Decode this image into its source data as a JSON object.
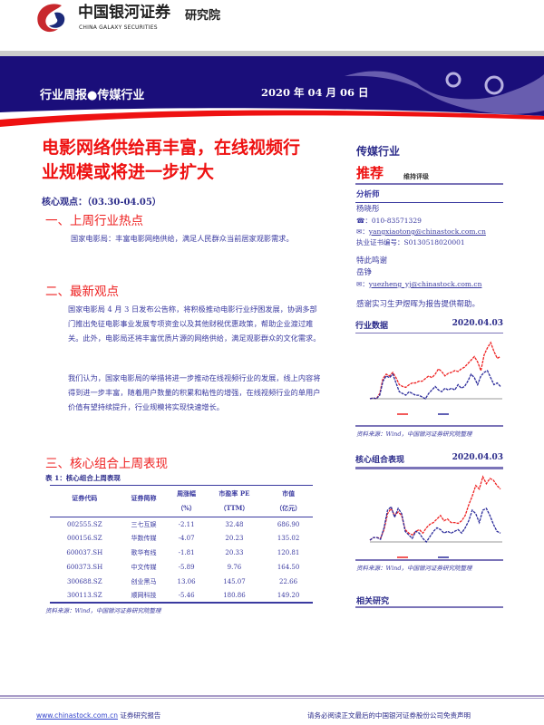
{
  "header": {
    "brand_cn": "中国银河证券",
    "brand_en": "CHINA GALAXY SECURITIES",
    "institute": "研究院"
  },
  "banner": {
    "report_type": "行业周报●传媒行业",
    "date": "2020 年 04 月 06 日"
  },
  "title": "电影网络供给再丰富，在线视频行业规模或将进一步扩大",
  "core_view": "核心观点：（03.30-04.05）",
  "rating": {
    "sector": "传媒行业",
    "rating": "推荐",
    "rating_note": "维持评级"
  },
  "analyst": {
    "heading": "分析师",
    "name": "杨晓彤",
    "phone": "☎：010-83571329",
    "email_label": "✉：",
    "email": "yangxiaotong@chinastock.com.cn",
    "license": "执业证书编号：S0130518020001",
    "thanks_heading": "特此鸣谢",
    "thanks_name": "岳铮",
    "thanks_email": "yuezheng_yj@chinastock.com.cn",
    "intern_note": "感谢实习生尹煜晖为报告提供帮助。"
  },
  "sections": [
    {
      "heading": "一、上周行业热点",
      "paras": [
        "国家电影局：丰富电影网络供给，满足人民群众当前居家观影需求。"
      ]
    },
    {
      "heading": "二、最新观点",
      "paras": [
        "国家电影局 4 月 3 日发布公告称，将积极推动电影行业纾困发展，协调多部门推出免征电影事业发展专项资金以及其他财税优惠政策，帮助企业渡过难关。此外，电影局还将丰富优质片源的网络供给，满足观影群众的文化需求。",
        "我们认为，国家电影局的举措将进一步推动在线视频行业的发展，线上内容将得到进一步丰富，随着用户数量的积累和粘性的增强，在线视频行业的单用户价值有望持续提升，行业规模将实现快速增长。"
      ]
    },
    {
      "heading": "三、核心组合上周表现"
    }
  ],
  "table": {
    "caption": "表 1：核心组合上周表现",
    "headers": [
      [
        "证券代码",
        ""
      ],
      [
        "证券简称",
        ""
      ],
      [
        "周涨幅",
        "（%）"
      ],
      [
        "市盈率 PE",
        "（TTM）"
      ],
      [
        "市值",
        "（亿元）"
      ]
    ],
    "rows": [
      [
        "002555.SZ",
        "三七互娱",
        "-2.11",
        "32.48",
        "686.90"
      ],
      [
        "000156.SZ",
        "华数传媒",
        "-4.07",
        "20.23",
        "135.02"
      ],
      [
        "600037.SH",
        "歌华有线",
        "-1.81",
        "20.33",
        "120.81"
      ],
      [
        "600373.SH",
        "中文传媒",
        "-5.89",
        "9.76",
        "164.50"
      ],
      [
        "300688.SZ",
        "创业黑马",
        "13.06",
        "145.07",
        "22.66"
      ],
      [
        "300113.SZ",
        "顺网科技",
        "-5.46",
        "180.86",
        "149.20"
      ]
    ],
    "source": "资料来源：Wind，中国银河证券研究院整理"
  },
  "figures": [
    {
      "title": "行业数据",
      "date": "2020.04.03",
      "source": "资料来源：Wind，中国银河证券研究院整理",
      "series": [
        {
          "color": "#ee2222",
          "values": [
            2,
            3,
            2,
            8,
            25,
            30,
            28,
            32,
            26,
            18,
            16,
            15,
            18,
            20,
            20,
            22,
            22,
            25,
            28,
            26,
            30,
            36,
            33,
            28,
            31,
            32,
            34,
            33,
            36,
            38,
            42,
            46,
            50,
            44,
            34,
            52,
            60,
            66,
            56,
            48,
            50
          ]
        },
        {
          "color": "#2b2b9a",
          "values": [
            2,
            3,
            2,
            6,
            22,
            28,
            26,
            30,
            20,
            10,
            8,
            6,
            10,
            8,
            6,
            6,
            4,
            2,
            8,
            12,
            16,
            12,
            10,
            14,
            12,
            14,
            12,
            18,
            14,
            16,
            22,
            30,
            26,
            18,
            28,
            32,
            34,
            26,
            18,
            20,
            16
          ]
        }
      ]
    },
    {
      "title": "核心组合表现",
      "date": "2020.04.03",
      "source": "资料来源：Wind，中国银河证券研究院整理",
      "series": [
        {
          "color": "#ee2222",
          "values": [
            0,
            3,
            3,
            2,
            12,
            30,
            36,
            28,
            32,
            28,
            12,
            8,
            6,
            10,
            12,
            8,
            14,
            18,
            20,
            24,
            28,
            22,
            24,
            20,
            20,
            19,
            22,
            28,
            40,
            50,
            62,
            58,
            72,
            64,
            70,
            68,
            62,
            58
          ]
        },
        {
          "color": "#2b2b9a",
          "values": [
            0,
            3,
            3,
            1,
            14,
            34,
            38,
            26,
            36,
            30,
            10,
            6,
            2,
            10,
            8,
            2,
            -2,
            4,
            10,
            14,
            12,
            8,
            10,
            8,
            10,
            12,
            8,
            14,
            22,
            34,
            30,
            20,
            34,
            36,
            28,
            18,
            10,
            8
          ]
        }
      ]
    }
  ],
  "related": "相关研究",
  "footer": {
    "link": "www.chinastock.com.cn",
    "link_suffix": " 证券研究报告",
    "disclaimer": "请务必阅读正文最后的中国银河证券股份公司免责声明"
  }
}
